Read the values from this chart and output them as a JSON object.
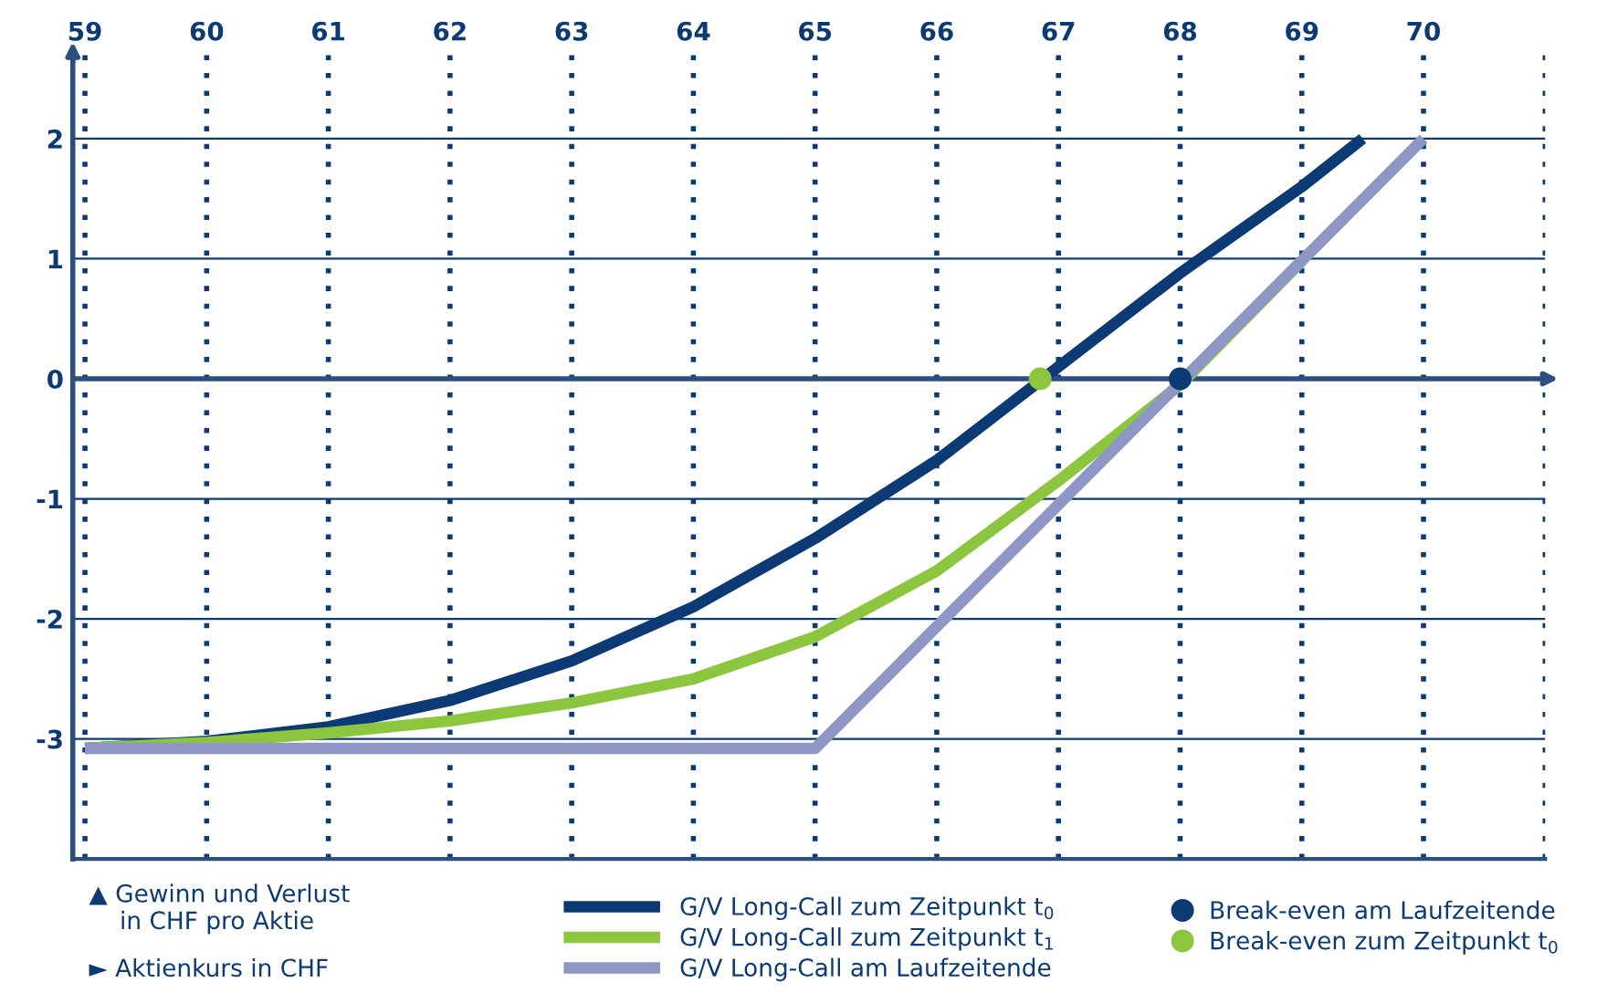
{
  "chart_data": {
    "type": "line",
    "series": [
      {
        "name": "G/V Long-Call zum Zeitpunkt t$_{0}$",
        "color": "#0b3a74",
        "x": [
          59,
          60,
          61,
          62,
          63,
          64,
          65,
          66,
          67,
          68,
          69,
          69.5
        ],
        "values": [
          -3.08,
          -3.02,
          -2.9,
          -2.68,
          -2.35,
          -1.9,
          -1.33,
          -0.68,
          0.1,
          0.88,
          1.6,
          2.0
        ]
      },
      {
        "name": "G/V Long-Call zum Zeitpunkt t$_{1}$",
        "color": "#8cc63f",
        "x": [
          59,
          60,
          61,
          62,
          63,
          64,
          65,
          66,
          67,
          68,
          69
        ],
        "values": [
          -3.08,
          -3.03,
          -2.95,
          -2.85,
          -2.7,
          -2.5,
          -2.15,
          -1.6,
          -0.85,
          -0.05,
          0.98
        ]
      },
      {
        "name": "G/V Long-Call am Laufzeitende",
        "color": "#8d96c4",
        "x": [
          59,
          65,
          70
        ],
        "values": [
          -3.08,
          -3.08,
          2.0
        ]
      },
      {
        "name": "Break-even am Laufzeitende",
        "type": "scatter",
        "marker": "circle",
        "color": "#0b3a74",
        "x": [
          68
        ],
        "values": [
          0
        ]
      },
      {
        "name": "Break-even zum Zeitpunkt t$_{0}$",
        "type": "scatter",
        "marker": "circle",
        "color": "#8cc63f",
        "x": [
          66.85
        ],
        "values": [
          0
        ]
      }
    ],
    "xlim": [
      58.9,
      71
    ],
    "xticks": [
      59,
      60,
      61,
      62,
      63,
      64,
      65,
      66,
      67,
      68,
      69,
      70,
      {
        "value": 71,
        "label": null
      }
    ],
    "ylim": [
      -4,
      2.7
    ],
    "yticks": [
      -3,
      -2,
      -1,
      0,
      1,
      2
    ],
    "ref_lines": [
      {
        "axis": "y",
        "value": 0,
        "color": "#2b4f80"
      }
    ],
    "grid": true,
    "legend": "bottom",
    "annotations": [
      "▲ Gewinn und Verlust\n    in CHF pro Aktie",
      "► Aktienkurs in CHF"
    ]
  }
}
